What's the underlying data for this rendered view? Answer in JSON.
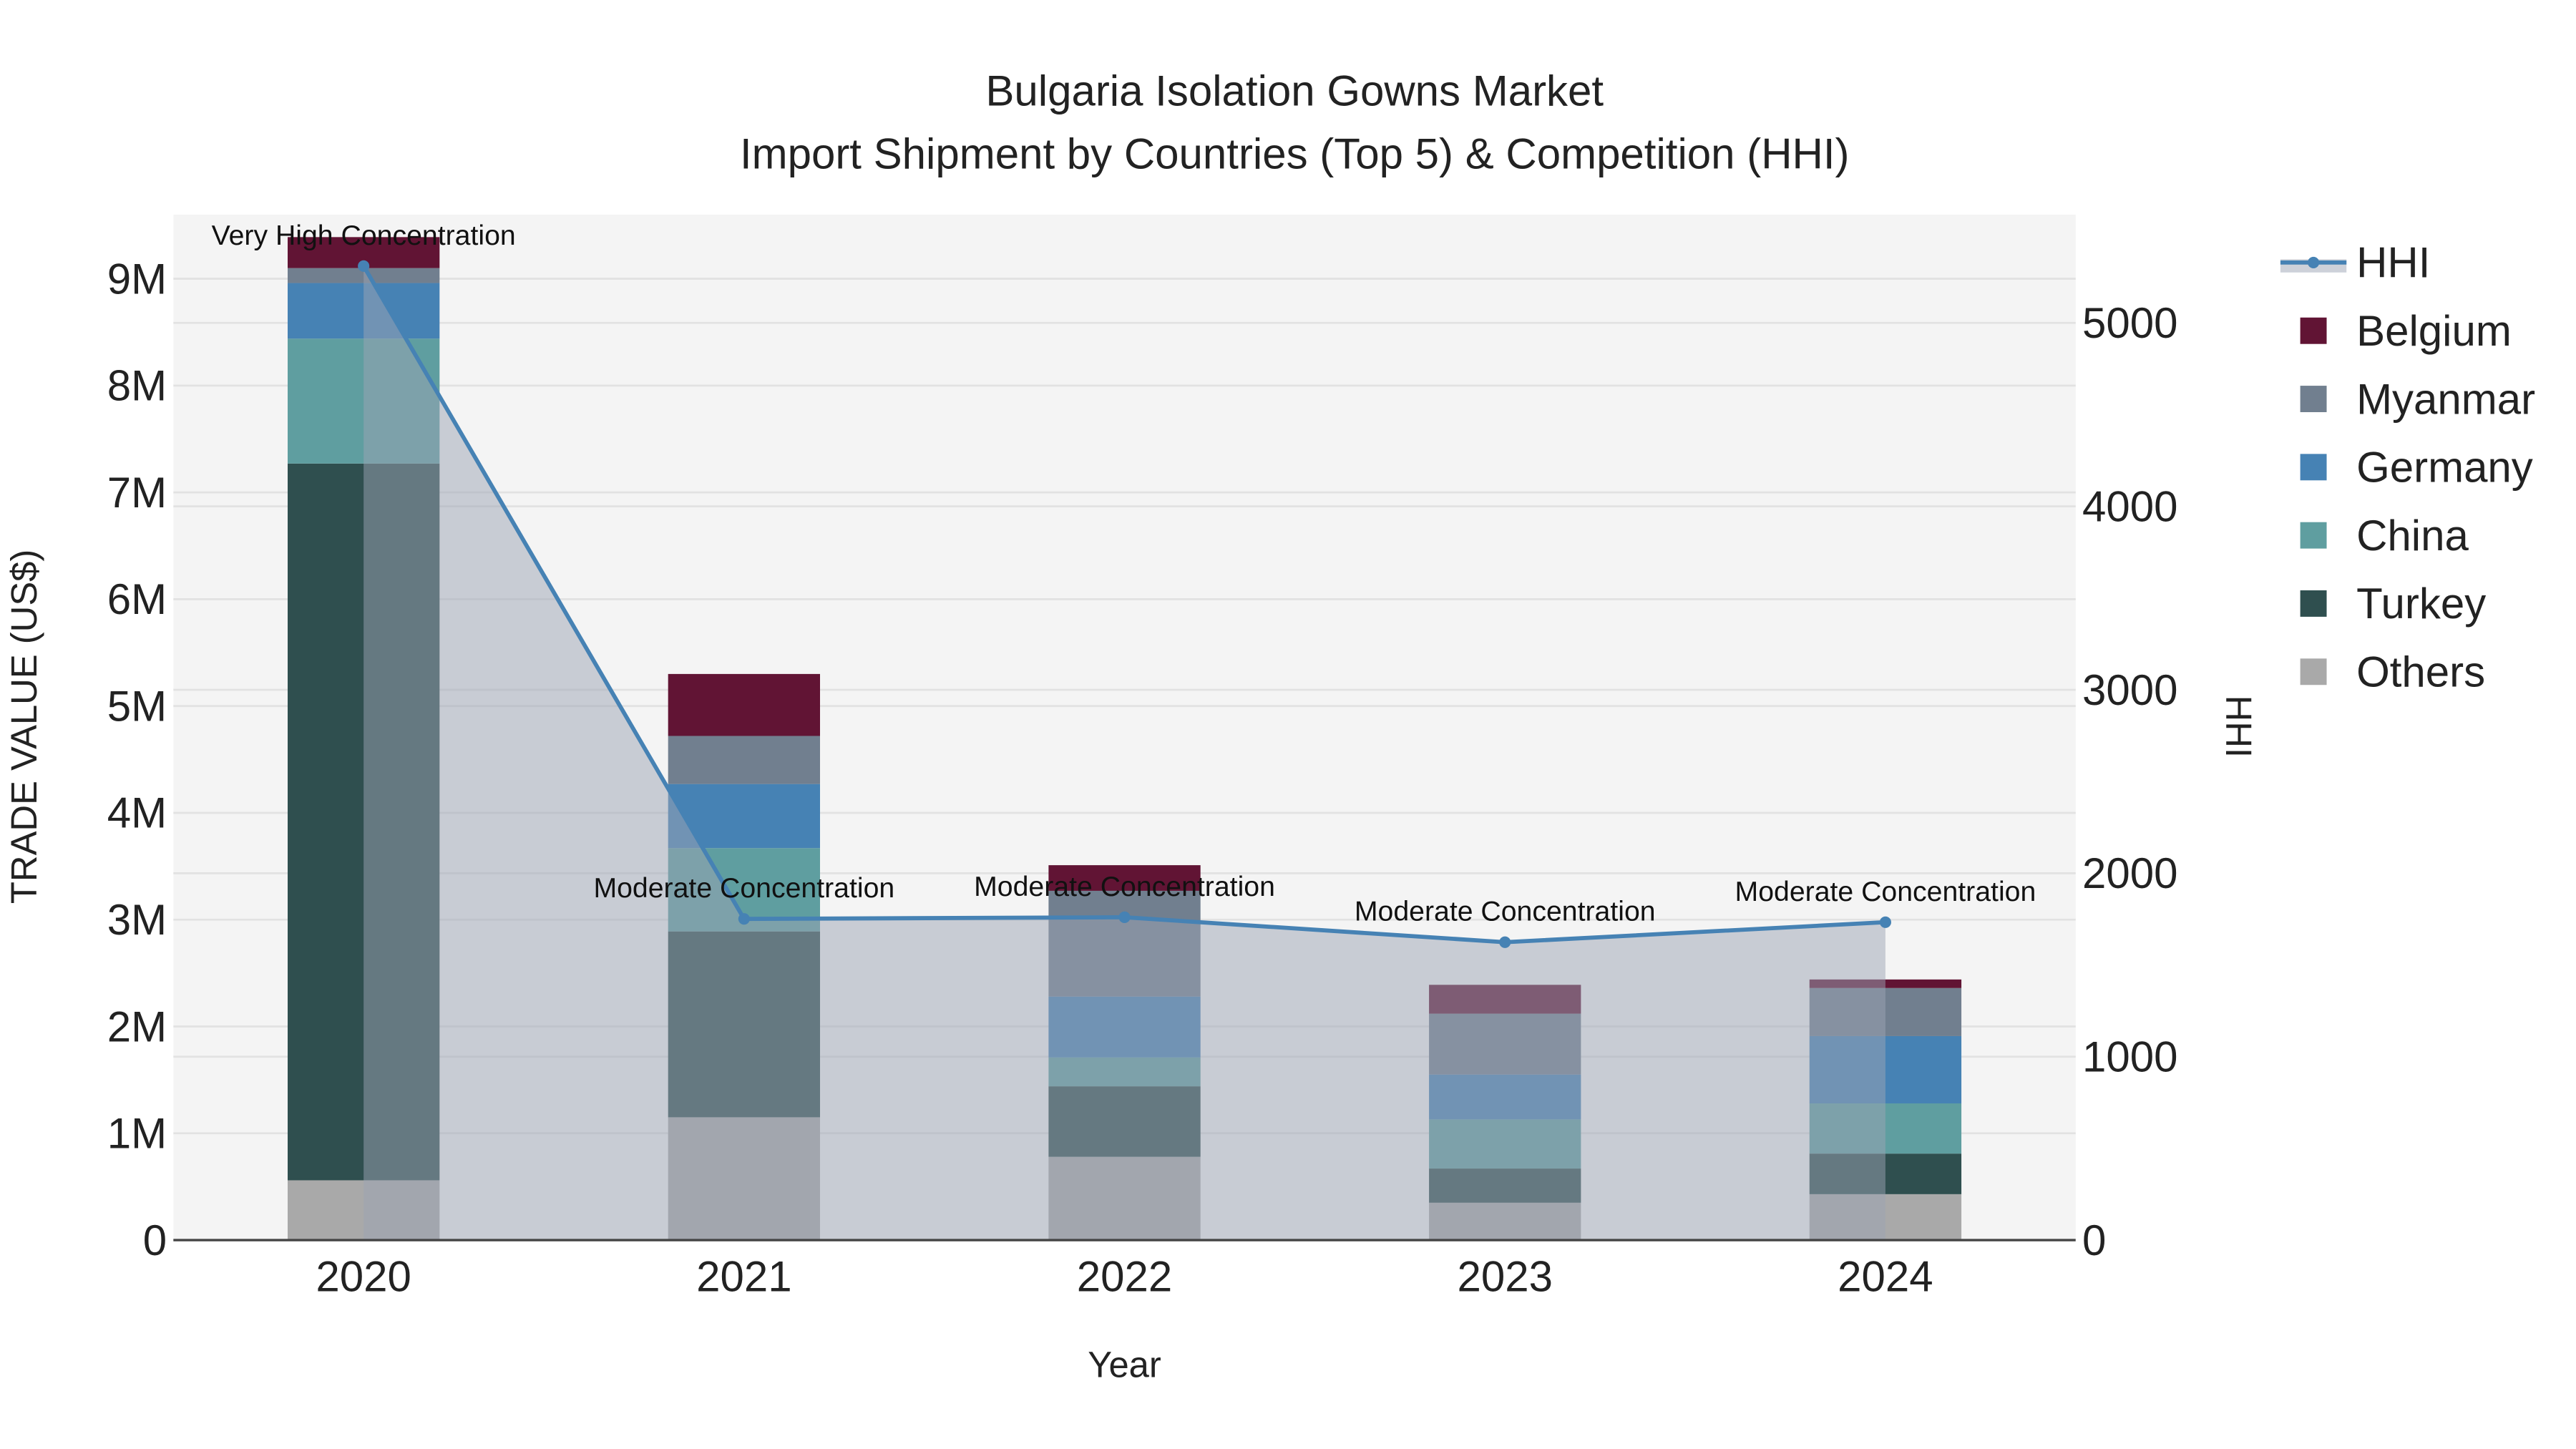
{
  "chart_data": {
    "type": "bar",
    "stacked": true,
    "title": "Bulgaria Isolation Gowns Market",
    "subtitle": "Import Shipment by Countries (Top 5) & Competition (HHI)",
    "xlabel": "Year",
    "ylabel": "TRADE VALUE (US$)",
    "y2label": "HHI",
    "categories": [
      "2020",
      "2021",
      "2022",
      "2023",
      "2024"
    ],
    "ylim": [
      0,
      9.6
    ],
    "yticks": [
      {
        "v": 0,
        "label": "0"
      },
      {
        "v": 1,
        "label": "1M"
      },
      {
        "v": 2,
        "label": "2M"
      },
      {
        "v": 3,
        "label": "3M"
      },
      {
        "v": 4,
        "label": "4M"
      },
      {
        "v": 5,
        "label": "5M"
      },
      {
        "v": 6,
        "label": "6M"
      },
      {
        "v": 7,
        "label": "7M"
      },
      {
        "v": 8,
        "label": "8M"
      },
      {
        "v": 9,
        "label": "9M"
      }
    ],
    "y2lim": [
      0,
      5590
    ],
    "y2ticks": [
      {
        "v": 0,
        "label": "0"
      },
      {
        "v": 1000,
        "label": "1000"
      },
      {
        "v": 2000,
        "label": "2000"
      },
      {
        "v": 3000,
        "label": "3000"
      },
      {
        "v": 4000,
        "label": "4000"
      },
      {
        "v": 5000,
        "label": "5000"
      }
    ],
    "value_unit": "million US$",
    "series": [
      {
        "name": "Others",
        "color": "#a9a9a9",
        "values": [
          0.56,
          1.15,
          0.78,
          0.35,
          0.43
        ]
      },
      {
        "name": "Turkey",
        "color": "#2f4f4f",
        "values": [
          6.71,
          1.74,
          0.66,
          0.32,
          0.38
        ]
      },
      {
        "name": "China",
        "color": "#5f9ea0",
        "values": [
          1.17,
          0.78,
          0.27,
          0.46,
          0.47
        ]
      },
      {
        "name": "Germany",
        "color": "#4682b4",
        "values": [
          0.52,
          0.6,
          0.57,
          0.42,
          0.63
        ]
      },
      {
        "name": "Myanmar",
        "color": "#717f8f",
        "values": [
          0.14,
          0.45,
          0.99,
          0.57,
          0.45
        ]
      },
      {
        "name": "Belgium",
        "color": "#611434",
        "values": [
          0.29,
          0.58,
          0.24,
          0.27,
          0.08
        ]
      }
    ],
    "hhi": {
      "name": "HHI",
      "color": "#4682b4",
      "values": [
        5310,
        1751,
        1760,
        1624,
        1733
      ],
      "annotations": [
        "Very High Concentration",
        "Moderate Concentration",
        "Moderate Concentration",
        "Moderate Concentration",
        "Moderate Concentration"
      ]
    },
    "legend": {
      "placement": "right",
      "entries": [
        "HHI",
        "Belgium",
        "Myanmar",
        "Germany",
        "China",
        "Turkey",
        "Others"
      ]
    },
    "grid": true
  }
}
